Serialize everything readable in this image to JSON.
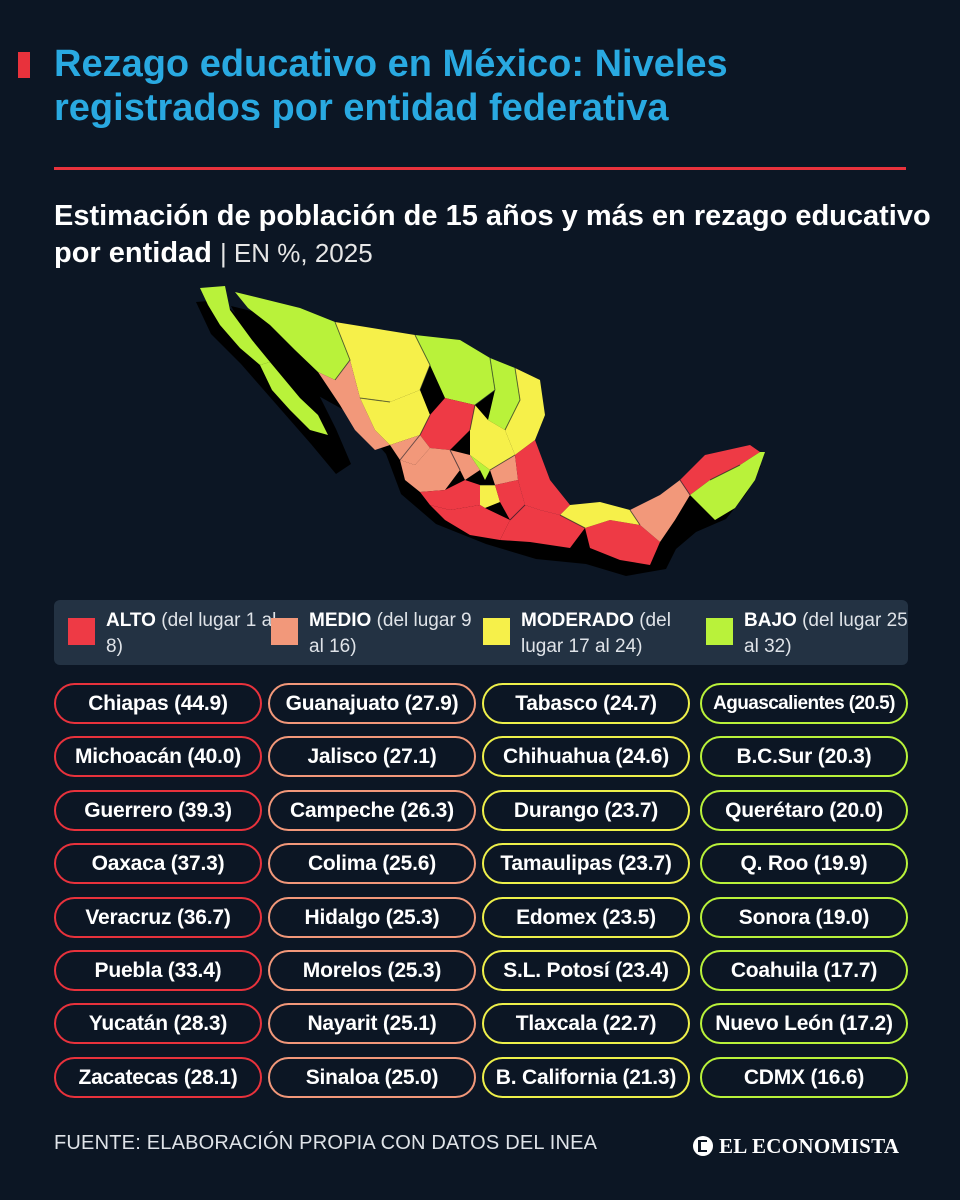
{
  "header": {
    "title": "Rezago educativo en México: Niveles registrados por entidad federativa",
    "subtitle": "Estimación de población de 15 años y más en rezago educativo por entidad",
    "unit": "| EN %, 2025"
  },
  "colors": {
    "alto": "#ee3a45",
    "medio": "#f2987a",
    "moderado": "#f6f04a",
    "bajo": "#b9f23a",
    "accent": "#29a9e1",
    "rule": "#e8323c"
  },
  "legend": [
    {
      "label": "ALTO",
      "range": "(del lugar 1 al 8)",
      "color": "#ee3a45"
    },
    {
      "label": "MEDIO",
      "range": "(del lugar 9 al 16)",
      "color": "#f2987a"
    },
    {
      "label": "MODERADO",
      "range": "(del lugar 17 al 24)",
      "color": "#f6f04a"
    },
    {
      "label": "BAJO",
      "range": "(del lugar 25 al 32)",
      "color": "#b9f23a"
    }
  ],
  "columns": [
    {
      "level": "alto",
      "border": "#e8323c",
      "items": [
        "Chiapas (44.9)",
        "Michoacán (40.0)",
        "Guerrero (39.3)",
        "Oaxaca (37.3)",
        "Veracruz (36.7)",
        "Puebla (33.4)",
        "Yucatán (28.3)",
        "Zacatecas (28.1)"
      ]
    },
    {
      "level": "medio",
      "border": "#f2987a",
      "items": [
        "Guanajuato (27.9)",
        "Jalisco (27.1)",
        "Campeche (26.3)",
        "Colima (25.6)",
        "Hidalgo (25.3)",
        "Morelos (25.3)",
        "Nayarit (25.1)",
        "Sinaloa (25.0)"
      ]
    },
    {
      "level": "moderado",
      "border": "#eef04a",
      "items": [
        "Tabasco (24.7)",
        "Chihuahua (24.6)",
        "Durango (23.7)",
        "Tamaulipas (23.7)",
        "Edomex (23.5)",
        "S.L. Potosí (23.4)",
        "Tlaxcala (22.7)",
        "B. California (21.3)"
      ]
    },
    {
      "level": "bajo",
      "border": "#b9f23a",
      "items": [
        "Aguascalientes (20.5)",
        "B.C.Sur (20.3)",
        "Querétaro (20.0)",
        "Q. Roo (19.9)",
        "Sonora (19.0)",
        "Coahuila (17.7)",
        "Nuevo León (17.2)",
        "CDMX (16.6)"
      ]
    }
  ],
  "footer": {
    "source": "FUENTE: ELABORACIÓN PROPIA CON DATOS DEL INEA",
    "logo": "EL ECONOMISTA"
  }
}
